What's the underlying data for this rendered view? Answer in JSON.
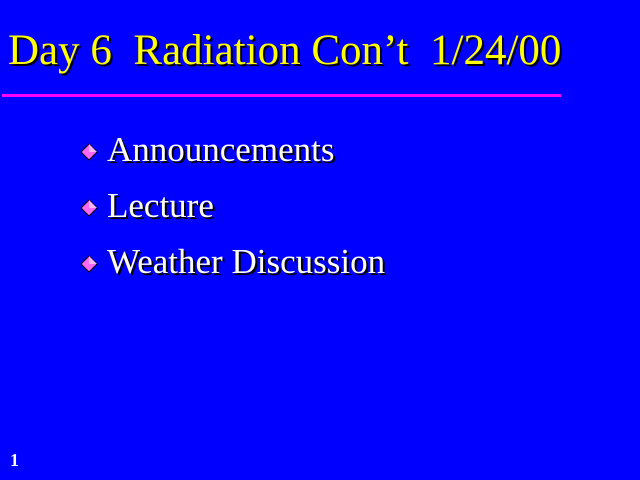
{
  "slide": {
    "title": "Day 6  Radiation Con’t  1/24/00",
    "bullets": [
      {
        "label": "Announcements",
        "icon": "diamond-bullet-icon"
      },
      {
        "label": "Lecture",
        "icon": "diamond-bullet-icon"
      },
      {
        "label": "Weather Discussion",
        "icon": "diamond-bullet-icon"
      }
    ],
    "page_number": "1"
  },
  "colors": {
    "background": "#0000ff",
    "title": "#ffff00",
    "rule": "#ff00ff",
    "text": "#ffffff",
    "bullet_face": "#ff66ff",
    "bullet_edge": "#cc33cc"
  }
}
